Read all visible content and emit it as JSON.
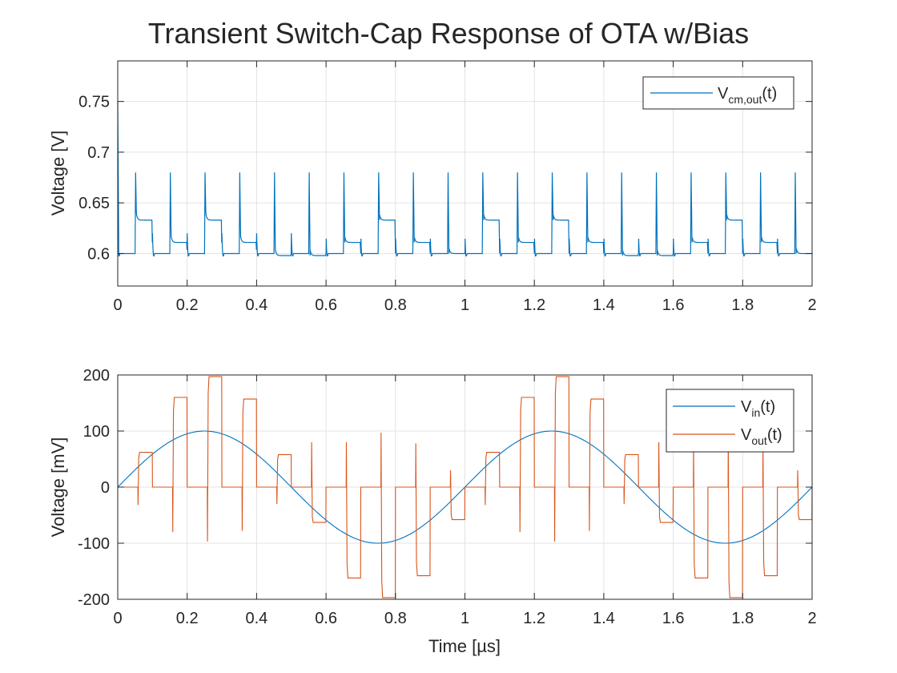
{
  "figure": {
    "title": "Transient Switch-Cap Response of OTA w/Bias"
  },
  "colors": {
    "series_blue": "#0072bd",
    "series_orange": "#d95319",
    "grid": "#e3e3e3",
    "axes": "#262626"
  },
  "chart_data": [
    {
      "type": "line",
      "title": "",
      "xlabel": "",
      "ylabel": "Voltage [V]",
      "xlim": [
        0,
        2
      ],
      "ylim": [
        0.568,
        0.79
      ],
      "xticks": [
        0,
        0.2,
        0.4,
        0.6,
        0.8,
        1,
        1.2,
        1.4,
        1.6,
        1.8,
        2
      ],
      "xtick_labels": [
        "0",
        "0.2",
        "0.4",
        "0.6",
        "0.8",
        "1",
        "1.2",
        "1.4",
        "1.6",
        "1.8",
        "2"
      ],
      "yticks": [
        0.6,
        0.65,
        0.7,
        0.75
      ],
      "ytick_labels": [
        "0.6",
        "0.65",
        "0.7",
        "0.75"
      ],
      "grid": true,
      "legend": "top-right",
      "series": [
        {
          "name": "V_cm,out(t)",
          "label_main": "V",
          "label_sub": "cm,out",
          "label_tail": "(t)",
          "color": "#0072bd",
          "model": "switch-cap common-mode output: baseline 0.6 V, 0.68 V spikes every 0.05 µs, settled levels 0.633 V / 0.611 V / 0.598 V",
          "baseline": 0.6,
          "spike_peak": 0.68,
          "initial_peak": 0.75,
          "period": 0.1,
          "levels_by_cycle": [
            0.633,
            0.611,
            0.633,
            0.611,
            0.598,
            0.598,
            0.611,
            0.633,
            0.611,
            0.6,
            0.633,
            0.611,
            0.633,
            0.611,
            0.598,
            0.598,
            0.611,
            0.633,
            0.611,
            0.6
          ]
        }
      ]
    },
    {
      "type": "line",
      "title": "",
      "xlabel": "Time [µs]",
      "ylabel": "Voltage [mV]",
      "xlim": [
        0,
        2
      ],
      "ylim": [
        -200,
        200
      ],
      "xticks": [
        0,
        0.2,
        0.4,
        0.6,
        0.8,
        1,
        1.2,
        1.4,
        1.6,
        1.8,
        2
      ],
      "xtick_labels": [
        "0",
        "0.2",
        "0.4",
        "0.6",
        "0.8",
        "1",
        "1.2",
        "1.4",
        "1.6",
        "1.8",
        "2"
      ],
      "yticks": [
        -200,
        -100,
        0,
        100,
        200
      ],
      "ytick_labels": [
        "-200",
        "-100",
        "0",
        "100",
        "200"
      ],
      "grid": true,
      "legend": "top-right",
      "series": [
        {
          "name": "V_in(t)",
          "label_main": "V",
          "label_sub": "in",
          "label_tail": "(t)",
          "color": "#0072bd",
          "amplitude_mV": 100,
          "period_us": 1
        },
        {
          "name": "V_out(t)",
          "label_main": "V",
          "label_sub": "out",
          "label_tail": "(t)",
          "color": "#d95319",
          "hold_levels_mV": [
            {
              "start": 0.058,
              "end": 0.1,
              "level": 62,
              "spike": -32
            },
            {
              "start": 0.158,
              "end": 0.2,
              "level": 160,
              "spike": -80
            },
            {
              "start": 0.258,
              "end": 0.3,
              "level": 197,
              "spike": -97
            },
            {
              "start": 0.358,
              "end": 0.4,
              "level": 157,
              "spike": -78
            },
            {
              "start": 0.458,
              "end": 0.5,
              "level": 58,
              "spike": -30
            },
            {
              "start": 0.558,
              "end": 0.6,
              "level": -63,
              "spike": 80
            },
            {
              "start": 0.658,
              "end": 0.7,
              "level": -162,
              "spike": 80
            },
            {
              "start": 0.758,
              "end": 0.8,
              "level": -197,
              "spike": 97
            },
            {
              "start": 0.858,
              "end": 0.9,
              "level": -158,
              "spike": 78
            },
            {
              "start": 0.958,
              "end": 1.0,
              "level": -58,
              "spike": 30
            },
            {
              "start": 1.058,
              "end": 1.1,
              "level": 62,
              "spike": -32
            },
            {
              "start": 1.158,
              "end": 1.2,
              "level": 160,
              "spike": -80
            },
            {
              "start": 1.258,
              "end": 1.3,
              "level": 197,
              "spike": -97
            },
            {
              "start": 1.358,
              "end": 1.4,
              "level": 157,
              "spike": -78
            },
            {
              "start": 1.458,
              "end": 1.5,
              "level": 58,
              "spike": -30
            },
            {
              "start": 1.558,
              "end": 1.6,
              "level": -63,
              "spike": 80
            },
            {
              "start": 1.658,
              "end": 1.7,
              "level": -162,
              "spike": 80
            },
            {
              "start": 1.758,
              "end": 1.8,
              "level": -197,
              "spike": 97
            },
            {
              "start": 1.858,
              "end": 1.9,
              "level": -158,
              "spike": 78
            },
            {
              "start": 1.958,
              "end": 2.0,
              "level": -58,
              "spike": 30
            }
          ]
        }
      ]
    }
  ]
}
